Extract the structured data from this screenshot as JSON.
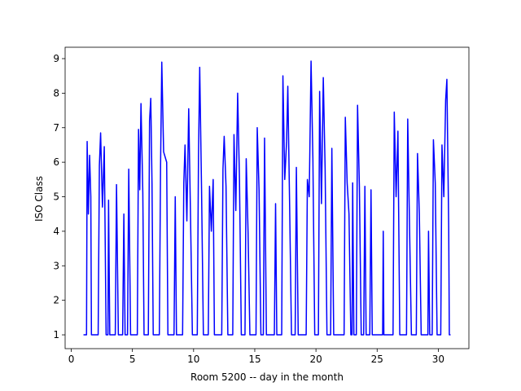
{
  "chart_data": {
    "type": "line",
    "x_label": "Room 5200 -- day in the month",
    "y_label": "ISO Class",
    "color": "#0000ff",
    "xlim": [
      -0.5,
      32.5
    ],
    "xticks": [
      0,
      5,
      10,
      15,
      20,
      25,
      30
    ],
    "ylim": [
      0.6,
      9.33
    ],
    "yticks": [
      1,
      2,
      3,
      4,
      5,
      6,
      7,
      8,
      9
    ],
    "x": [
      1.0,
      1.25,
      1.3,
      1.4,
      1.5,
      1.6,
      1.65,
      2.2,
      2.3,
      2.4,
      2.55,
      2.7,
      2.85,
      3.0,
      3.05,
      3.15,
      3.6,
      3.7,
      3.85,
      4.2,
      4.3,
      4.4,
      4.6,
      4.7,
      4.85,
      5.4,
      5.5,
      5.6,
      5.7,
      5.85,
      5.95,
      6.3,
      6.4,
      6.5,
      6.6,
      6.7,
      7.2,
      7.3,
      7.4,
      7.55,
      7.8,
      7.9,
      8.4,
      8.5,
      8.6,
      9.1,
      9.2,
      9.3,
      9.45,
      9.6,
      9.75,
      9.9,
      10.3,
      10.4,
      10.5,
      10.65,
      10.8,
      11.2,
      11.3,
      11.45,
      11.6,
      11.7,
      12.3,
      12.4,
      12.5,
      12.65,
      12.8,
      13.2,
      13.3,
      13.45,
      13.6,
      13.75,
      13.9,
      14.2,
      14.3,
      14.45,
      14.6,
      15.1,
      15.2,
      15.35,
      15.5,
      15.7,
      15.8,
      15.95,
      16.6,
      16.7,
      16.8,
      17.2,
      17.3,
      17.45,
      17.6,
      17.7,
      17.85,
      18.0,
      18.3,
      18.4,
      18.55,
      19.2,
      19.3,
      19.45,
      19.6,
      19.75,
      19.9,
      20.2,
      20.3,
      20.45,
      20.6,
      20.75,
      20.9,
      21.2,
      21.3,
      21.45,
      22.3,
      22.4,
      22.55,
      22.7,
      22.85,
      22.95,
      23.0,
      23.1,
      23.3,
      23.4,
      23.55,
      23.7,
      23.9,
      24.0,
      24.1,
      24.4,
      24.5,
      24.6,
      25.45,
      25.5,
      25.55,
      26.3,
      26.4,
      26.55,
      26.7,
      26.85,
      27.4,
      27.5,
      27.65,
      27.8,
      28.2,
      28.3,
      28.45,
      28.6,
      29.15,
      29.2,
      29.3,
      29.5,
      29.6,
      29.75,
      29.9,
      30.2,
      30.3,
      30.45,
      30.6,
      30.7,
      30.85,
      30.9,
      31.0
    ],
    "values": [
      1,
      1,
      6.6,
      4.5,
      6.2,
      5.0,
      1,
      1,
      5.9,
      6.85,
      4.7,
      6.45,
      1,
      1,
      4.9,
      1,
      1,
      5.35,
      1,
      1,
      4.5,
      1,
      1,
      5.8,
      1,
      1,
      6.95,
      5.2,
      7.7,
      5.1,
      1,
      1,
      7.2,
      7.85,
      5.4,
      1,
      1,
      5.9,
      8.9,
      6.3,
      6.0,
      1,
      1,
      5.0,
      1,
      1,
      5.4,
      6.5,
      4.3,
      7.55,
      4.4,
      1,
      1,
      6.2,
      8.75,
      5.2,
      1,
      1,
      5.3,
      4.0,
      5.5,
      1,
      1,
      5.8,
      6.75,
      5.3,
      1,
      1,
      6.8,
      4.6,
      8.0,
      5.5,
      1,
      1,
      6.1,
      4.0,
      1,
      1,
      7.0,
      5.2,
      1,
      1,
      6.7,
      1,
      1,
      4.8,
      1,
      1,
      8.5,
      5.5,
      6.6,
      8.2,
      4.7,
      1,
      1,
      5.85,
      1,
      1,
      5.5,
      5.0,
      8.93,
      6.1,
      1,
      1,
      8.05,
      4.8,
      8.45,
      5.8,
      1,
      1,
      6.4,
      1,
      1,
      7.3,
      5.4,
      4.5,
      1,
      1,
      5.4,
      1,
      1,
      7.65,
      5.3,
      1,
      1,
      5.3,
      1,
      1,
      5.2,
      1,
      1,
      4.0,
      1,
      1,
      7.45,
      5.0,
      6.9,
      1,
      1,
      7.25,
      4.1,
      1,
      1,
      6.25,
      4.5,
      1,
      1,
      4.0,
      1,
      1,
      6.65,
      5.4,
      1,
      1,
      6.5,
      5.0,
      7.8,
      8.4,
      4.1,
      1,
      1
    ]
  }
}
